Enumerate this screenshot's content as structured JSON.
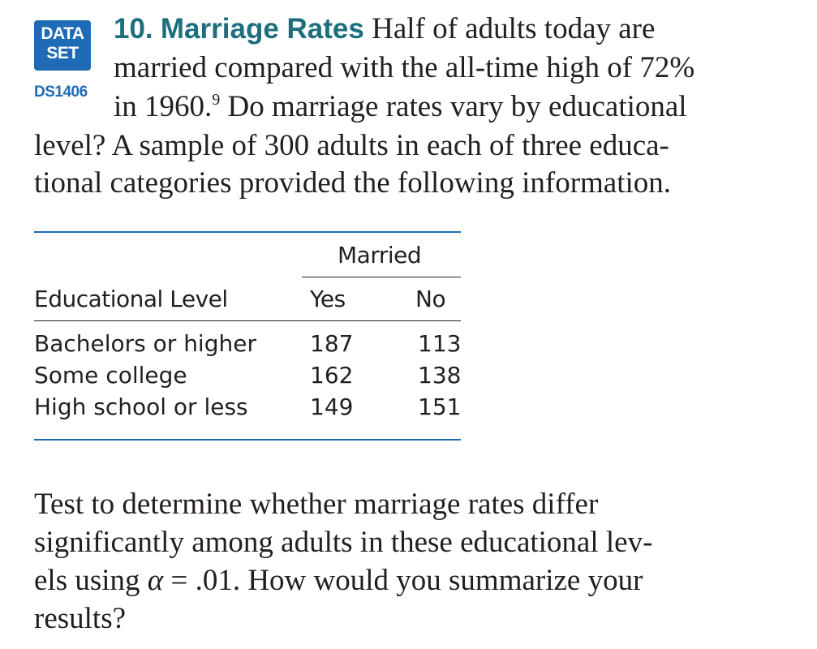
{
  "badge": {
    "line1": "DATA",
    "line2": "SET",
    "dataset_id": "DS1406"
  },
  "exercise": {
    "number": "10.",
    "title": "Marriage Rates",
    "lines": [
      "Half of adults today are",
      "married compared with the all-time high of 72%",
      "in 1960.",
      "Do marriage rates vary by educational",
      "level? A sample of 300 adults in each of three educa-",
      "tional categories provided the following information."
    ],
    "footnote": "9"
  },
  "table": {
    "group_header": "Married",
    "columns": [
      "Educational Level",
      "Yes",
      "No"
    ],
    "rows": [
      {
        "level": "Bachelors or higher",
        "yes": "187",
        "no": "113"
      },
      {
        "level": "Some college",
        "yes": "162",
        "no": "138"
      },
      {
        "level": "High school or less",
        "yes": "149",
        "no": "151"
      }
    ]
  },
  "question": {
    "lines": [
      "Test to determine whether marriage rates differ",
      "significantly among adults in these educational lev-",
      "els using ",
      "α",
      " = .01. How would you summarize your",
      "results?"
    ]
  },
  "colors": {
    "badge_blue": "#1f6bb5",
    "title_teal": "#1d6f7e",
    "text": "#231f20"
  }
}
